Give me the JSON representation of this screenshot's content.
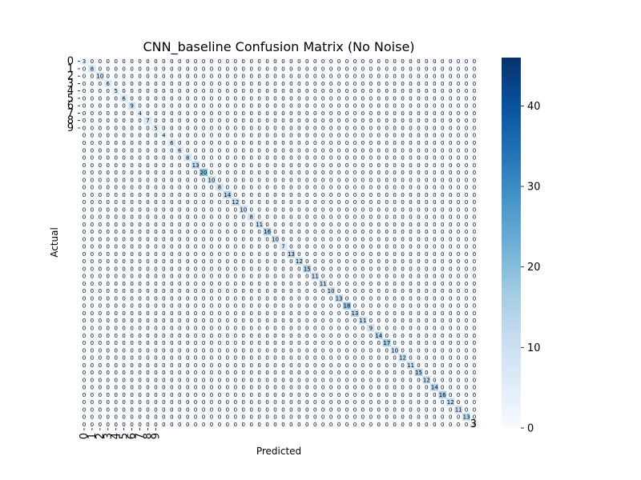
{
  "chart_data": {
    "type": "heatmap",
    "title": "CNN_baseline Confusion Matrix (No Noise)",
    "xlabel": "Predicted",
    "ylabel": "Actual",
    "n_classes": 50,
    "row_tick_labels": [
      "0",
      "1",
      "2",
      "3",
      "4",
      "5",
      "6",
      "7",
      "8",
      "9"
    ],
    "col_tick_labels": [
      "0",
      "1",
      "2",
      "3",
      "4",
      "5",
      "6",
      "7",
      "8",
      "9"
    ],
    "diagonal_values": [
      3,
      8,
      10,
      6,
      5,
      6,
      9,
      4,
      7,
      5,
      4,
      6,
      6,
      8,
      13,
      20,
      10,
      8,
      14,
      12,
      10,
      8,
      11,
      16,
      10,
      7,
      13,
      12,
      15,
      11,
      11,
      10,
      13,
      18,
      13,
      11,
      9,
      14,
      17,
      10,
      12,
      11,
      15,
      12,
      14,
      16,
      12,
      11,
      13,
      3
    ],
    "off_diagonal_value": 0,
    "bottom_right_annotation": "3",
    "colorbar": {
      "colormap": "Blues",
      "range": [
        0,
        46
      ],
      "ticks": [
        "0",
        "10",
        "20",
        "30",
        "40"
      ],
      "colors": [
        "#f7fbff",
        "#deebf7",
        "#c6dbef",
        "#9ecae1",
        "#6baed6",
        "#4292c6",
        "#2171b5",
        "#08519c",
        "#08306b"
      ]
    },
    "grid": false,
    "legend": "none"
  }
}
